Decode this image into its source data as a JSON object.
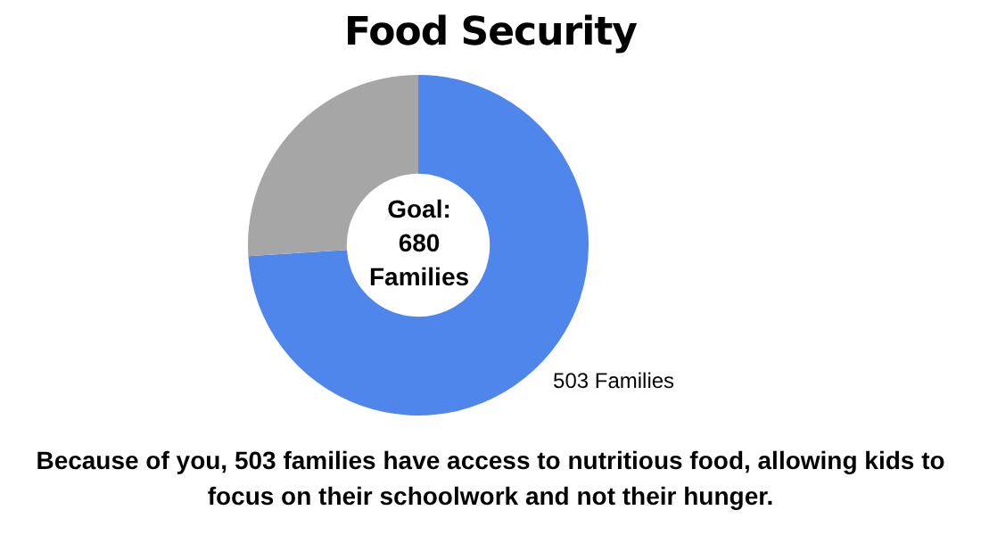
{
  "chart_data": {
    "type": "donut",
    "title": "Food Security",
    "categories": [
      null,
      null
    ],
    "values": [
      503,
      177
    ],
    "colors": [
      "#4f86ec",
      "#a6a6a6"
    ],
    "value_labels": [
      "503 Families",
      null
    ],
    "annotations": [
      "Goal: 680 Families",
      "Because of you, 503 families have access to nutritious food, allowing kids to focus on their schoolwork and not their hunger."
    ]
  }
}
